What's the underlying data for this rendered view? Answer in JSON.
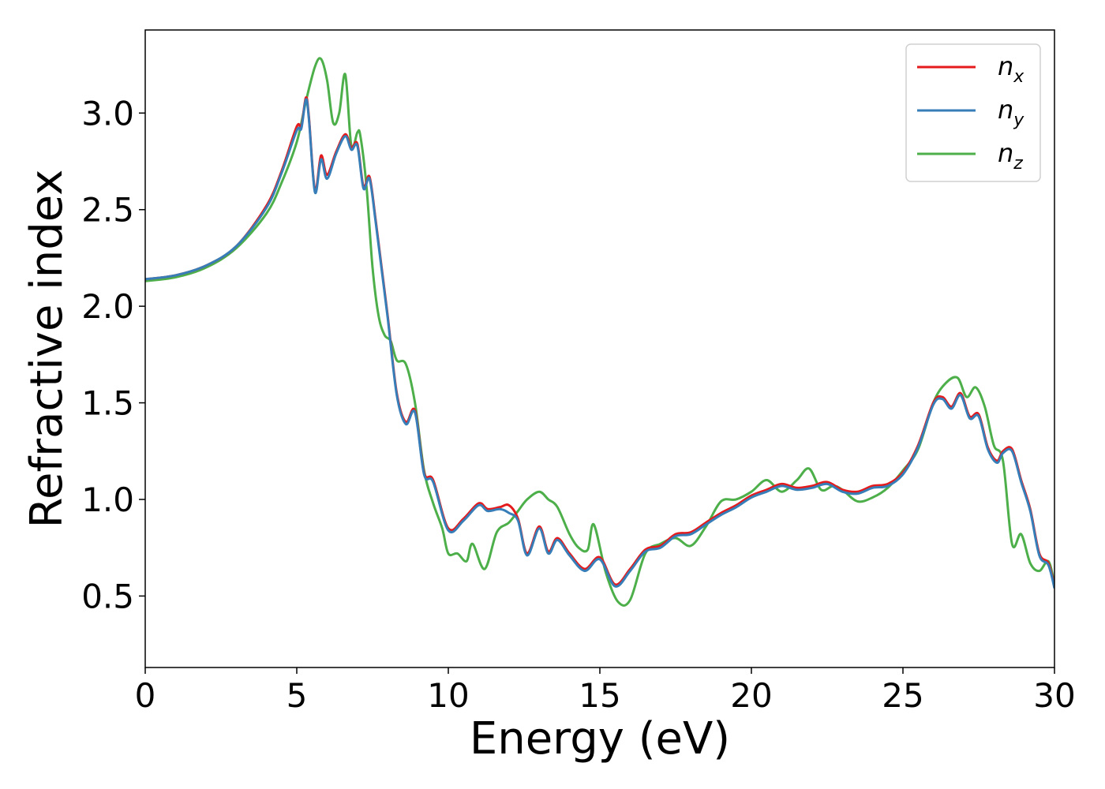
{
  "chart_data": {
    "type": "line",
    "title": "",
    "xlabel": "Energy (eV)",
    "ylabel": "Refractive index",
    "xlim": [
      0,
      30
    ],
    "ylim": [
      0.13,
      3.43
    ],
    "xticks": [
      0,
      5,
      10,
      15,
      20,
      25,
      30
    ],
    "yticks": [
      0.5,
      1.0,
      1.5,
      2.0,
      2.5,
      3.0
    ],
    "xtick_labels": [
      "0",
      "5",
      "10",
      "15",
      "20",
      "25",
      "30"
    ],
    "ytick_labels": [
      "0.5",
      "1.0",
      "1.5",
      "2.0",
      "2.5",
      "3.0"
    ],
    "grid": false,
    "legend_position": "top-right",
    "series": [
      {
        "name": "n_x",
        "legend_base": "n",
        "legend_sub": "x",
        "color": "#e41a1c",
        "x": [
          0,
          1,
          2,
          3,
          4,
          4.5,
          5,
          5.15,
          5.3,
          5.4,
          5.6,
          5.8,
          6.0,
          6.3,
          6.6,
          6.8,
          7.0,
          7.2,
          7.4,
          7.6,
          7.8,
          8.0,
          8.3,
          8.6,
          8.9,
          9.2,
          9.5,
          10.0,
          10.5,
          11.0,
          11.3,
          11.7,
          12.0,
          12.3,
          12.6,
          13.0,
          13.3,
          13.6,
          14.0,
          14.5,
          15.0,
          15.5,
          16.0,
          16.5,
          17.0,
          17.5,
          18.0,
          18.5,
          19.0,
          19.5,
          20.0,
          20.5,
          21.0,
          21.5,
          22.0,
          22.5,
          23.0,
          23.5,
          24.0,
          24.5,
          25.0,
          25.5,
          26.0,
          26.3,
          26.6,
          26.9,
          27.2,
          27.5,
          27.8,
          28.1,
          28.3,
          28.6,
          28.9,
          29.2,
          29.5,
          29.8,
          30.0
        ],
        "y": [
          2.14,
          2.16,
          2.21,
          2.31,
          2.52,
          2.7,
          2.93,
          2.93,
          3.08,
          2.98,
          2.6,
          2.78,
          2.68,
          2.8,
          2.89,
          2.82,
          2.84,
          2.62,
          2.67,
          2.45,
          2.2,
          1.95,
          1.55,
          1.4,
          1.46,
          1.14,
          1.1,
          0.85,
          0.9,
          0.98,
          0.95,
          0.96,
          0.97,
          0.9,
          0.72,
          0.86,
          0.73,
          0.8,
          0.72,
          0.64,
          0.7,
          0.56,
          0.64,
          0.74,
          0.76,
          0.82,
          0.83,
          0.88,
          0.93,
          0.97,
          1.02,
          1.05,
          1.08,
          1.06,
          1.07,
          1.09,
          1.05,
          1.04,
          1.07,
          1.08,
          1.14,
          1.28,
          1.5,
          1.53,
          1.48,
          1.55,
          1.43,
          1.44,
          1.27,
          1.2,
          1.25,
          1.26,
          1.1,
          0.95,
          0.72,
          0.67,
          0.55
        ]
      },
      {
        "name": "n_y",
        "legend_base": "n",
        "legend_sub": "y",
        "color": "#377eb8",
        "x": [
          0,
          1,
          2,
          3,
          4,
          4.5,
          5,
          5.15,
          5.3,
          5.4,
          5.6,
          5.8,
          6.0,
          6.3,
          6.6,
          6.8,
          7.0,
          7.2,
          7.4,
          7.6,
          7.8,
          8.0,
          8.3,
          8.6,
          8.9,
          9.2,
          9.5,
          10.0,
          10.5,
          11.0,
          11.3,
          11.7,
          12.0,
          12.3,
          12.6,
          13.0,
          13.3,
          13.6,
          14.0,
          14.5,
          15.0,
          15.5,
          16.0,
          16.5,
          17.0,
          17.5,
          18.0,
          18.5,
          19.0,
          19.5,
          20.0,
          20.5,
          21.0,
          21.5,
          22.0,
          22.5,
          23.0,
          23.5,
          24.0,
          24.5,
          25.0,
          25.5,
          26.0,
          26.3,
          26.6,
          26.9,
          27.2,
          27.5,
          27.8,
          28.1,
          28.3,
          28.6,
          28.9,
          29.2,
          29.5,
          29.8,
          30.0
        ],
        "y": [
          2.14,
          2.16,
          2.21,
          2.31,
          2.51,
          2.69,
          2.91,
          2.92,
          3.07,
          2.97,
          2.59,
          2.76,
          2.66,
          2.79,
          2.88,
          2.81,
          2.83,
          2.61,
          2.66,
          2.44,
          2.19,
          1.94,
          1.54,
          1.39,
          1.45,
          1.13,
          1.09,
          0.84,
          0.89,
          0.97,
          0.94,
          0.95,
          0.93,
          0.89,
          0.71,
          0.85,
          0.72,
          0.79,
          0.71,
          0.63,
          0.69,
          0.55,
          0.63,
          0.73,
          0.75,
          0.81,
          0.82,
          0.87,
          0.92,
          0.96,
          1.01,
          1.04,
          1.07,
          1.05,
          1.06,
          1.08,
          1.04,
          1.03,
          1.06,
          1.07,
          1.13,
          1.27,
          1.49,
          1.52,
          1.47,
          1.54,
          1.42,
          1.43,
          1.26,
          1.19,
          1.24,
          1.25,
          1.09,
          0.94,
          0.71,
          0.66,
          0.54
        ]
      },
      {
        "name": "n_z",
        "legend_base": "n",
        "legend_sub": "z",
        "color": "#4daf4a",
        "x": [
          0,
          1,
          2,
          3,
          4,
          4.5,
          5,
          5.3,
          5.6,
          5.8,
          6.0,
          6.2,
          6.4,
          6.6,
          6.8,
          7.0,
          7.1,
          7.3,
          7.5,
          7.7,
          7.9,
          8.1,
          8.3,
          8.6,
          8.9,
          9.2,
          9.5,
          9.8,
          10.0,
          10.3,
          10.6,
          10.8,
          11.2,
          11.6,
          12.0,
          12.3,
          12.6,
          13.0,
          13.3,
          13.6,
          14.0,
          14.3,
          14.6,
          14.8,
          15.2,
          15.6,
          16.0,
          16.5,
          17.0,
          17.5,
          18.0,
          18.5,
          19.0,
          19.5,
          20.0,
          20.5,
          21.0,
          21.5,
          21.9,
          22.3,
          22.7,
          23.0,
          23.5,
          24.0,
          24.5,
          25.0,
          25.5,
          26.0,
          26.4,
          26.8,
          27.1,
          27.4,
          27.7,
          28.0,
          28.3,
          28.6,
          28.9,
          29.2,
          29.5,
          29.8,
          30.0
        ],
        "y": [
          2.13,
          2.15,
          2.2,
          2.3,
          2.48,
          2.64,
          2.85,
          3.06,
          3.24,
          3.28,
          3.17,
          2.95,
          3.0,
          3.2,
          2.83,
          2.9,
          2.88,
          2.62,
          2.2,
          1.95,
          1.85,
          1.82,
          1.72,
          1.7,
          1.5,
          1.15,
          0.98,
          0.85,
          0.72,
          0.72,
          0.68,
          0.77,
          0.64,
          0.83,
          0.88,
          0.94,
          1.0,
          1.04,
          1.0,
          0.96,
          0.82,
          0.75,
          0.74,
          0.87,
          0.62,
          0.47,
          0.48,
          0.72,
          0.77,
          0.8,
          0.76,
          0.86,
          0.99,
          1.0,
          1.04,
          1.1,
          1.04,
          1.1,
          1.16,
          1.05,
          1.07,
          1.05,
          0.99,
          1.01,
          1.06,
          1.15,
          1.26,
          1.5,
          1.6,
          1.63,
          1.53,
          1.58,
          1.48,
          1.28,
          1.2,
          0.77,
          0.82,
          0.67,
          0.63,
          0.68,
          0.56
        ]
      }
    ]
  }
}
